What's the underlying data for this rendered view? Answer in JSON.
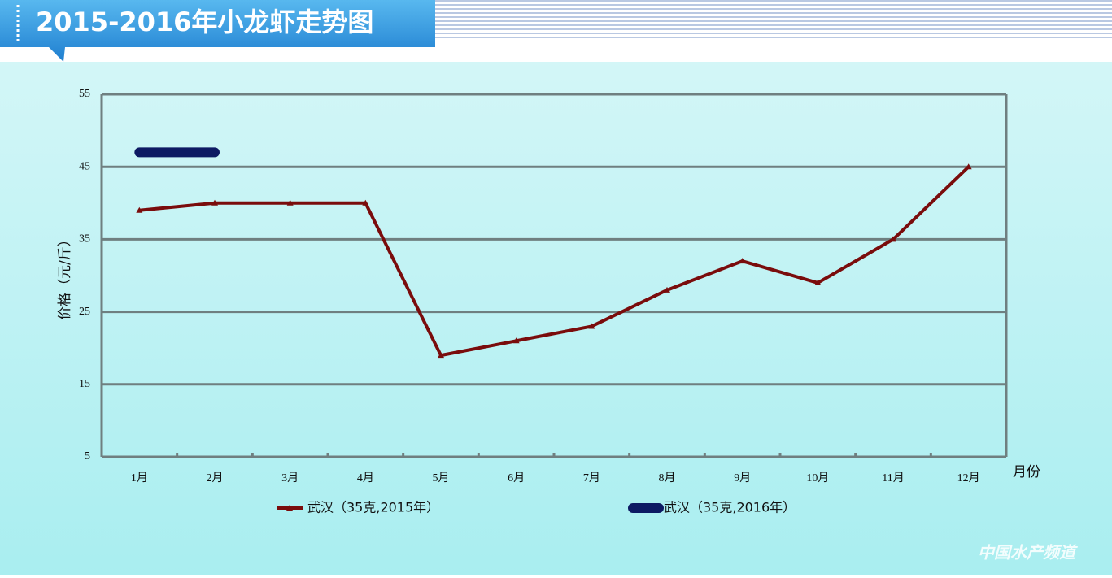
{
  "chart_data": {
    "type": "line",
    "title": "2015-2016年小龙虾走势图",
    "y_label": "价格（元/斤）",
    "x_label": "月份",
    "categories": [
      "1月",
      "2月",
      "3月",
      "4月",
      "5月",
      "6月",
      "7月",
      "8月",
      "9月",
      "10月",
      "11月",
      "12月"
    ],
    "series": [
      {
        "name": "武汉（35克,2015年）",
        "color": "#7a0c0c",
        "values": [
          39,
          40,
          40,
          40,
          19,
          21,
          23,
          28,
          32,
          29,
          35,
          45
        ]
      },
      {
        "name": "武汉（35克,2016年）",
        "color": "#0d1a63",
        "values": [
          47,
          47,
          null,
          null,
          null,
          null,
          null,
          null,
          null,
          null,
          null,
          null
        ]
      }
    ],
    "ylim": [
      5,
      55
    ],
    "yticks": [
      5,
      15,
      25,
      35,
      45,
      55
    ],
    "grid": true,
    "watermark": "中国水产频道"
  }
}
